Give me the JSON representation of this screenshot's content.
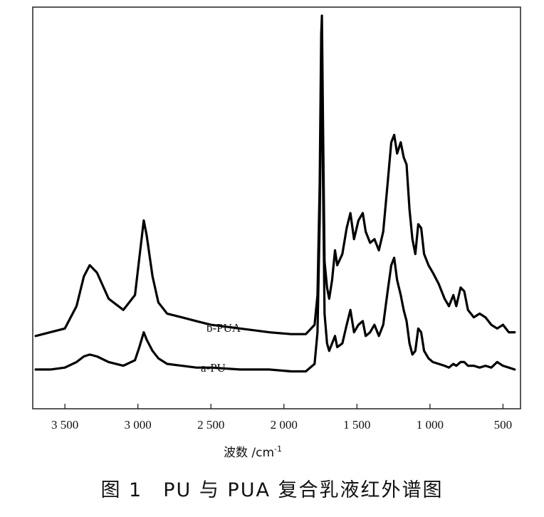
{
  "caption": "图 1　PU 与 PUA 复合乳液红外谱图",
  "chart_data": {
    "type": "line",
    "title": "",
    "xlabel": "波数 /cm",
    "xlabel_sup": "-1",
    "ylabel": "",
    "x_reversed": true,
    "xlim": [
      3720,
      380
    ],
    "x_ticks": [
      3500,
      3000,
      2500,
      2000,
      1500,
      1000,
      500
    ],
    "x_tick_labels": [
      "3 500",
      "3 000",
      "2 500",
      "2 000",
      "1 500",
      "1 000",
      "500"
    ],
    "y_ticks": false,
    "grid": false,
    "series": [
      {
        "name": "b-PUA",
        "color": "#000000",
        "points": [
          [
            3700,
            0.14
          ],
          [
            3600,
            0.15
          ],
          [
            3500,
            0.16
          ],
          [
            3420,
            0.22
          ],
          [
            3370,
            0.3
          ],
          [
            3330,
            0.33
          ],
          [
            3280,
            0.31
          ],
          [
            3200,
            0.24
          ],
          [
            3100,
            0.21
          ],
          [
            3020,
            0.25
          ],
          [
            2990,
            0.35
          ],
          [
            2960,
            0.45
          ],
          [
            2940,
            0.41
          ],
          [
            2900,
            0.3
          ],
          [
            2860,
            0.23
          ],
          [
            2800,
            0.2
          ],
          [
            2700,
            0.19
          ],
          [
            2600,
            0.18
          ],
          [
            2500,
            0.17
          ],
          [
            2300,
            0.16
          ],
          [
            2100,
            0.15
          ],
          [
            1950,
            0.145
          ],
          [
            1850,
            0.145
          ],
          [
            1790,
            0.17
          ],
          [
            1770,
            0.25
          ],
          [
            1755,
            0.55
          ],
          [
            1745,
            0.95
          ],
          [
            1740,
            1.0
          ],
          [
            1732,
            0.7
          ],
          [
            1722,
            0.34
          ],
          [
            1705,
            0.27
          ],
          [
            1690,
            0.24
          ],
          [
            1670,
            0.29
          ],
          [
            1650,
            0.37
          ],
          [
            1635,
            0.33
          ],
          [
            1600,
            0.36
          ],
          [
            1570,
            0.43
          ],
          [
            1545,
            0.47
          ],
          [
            1520,
            0.4
          ],
          [
            1490,
            0.45
          ],
          [
            1460,
            0.47
          ],
          [
            1440,
            0.42
          ],
          [
            1410,
            0.39
          ],
          [
            1380,
            0.4
          ],
          [
            1350,
            0.37
          ],
          [
            1320,
            0.42
          ],
          [
            1290,
            0.55
          ],
          [
            1265,
            0.66
          ],
          [
            1245,
            0.68
          ],
          [
            1225,
            0.63
          ],
          [
            1200,
            0.66
          ],
          [
            1180,
            0.62
          ],
          [
            1160,
            0.6
          ],
          [
            1140,
            0.48
          ],
          [
            1120,
            0.4
          ],
          [
            1100,
            0.36
          ],
          [
            1080,
            0.44
          ],
          [
            1060,
            0.43
          ],
          [
            1040,
            0.36
          ],
          [
            1010,
            0.33
          ],
          [
            980,
            0.31
          ],
          [
            940,
            0.28
          ],
          [
            900,
            0.24
          ],
          [
            870,
            0.22
          ],
          [
            840,
            0.25
          ],
          [
            820,
            0.22
          ],
          [
            790,
            0.27
          ],
          [
            765,
            0.26
          ],
          [
            740,
            0.21
          ],
          [
            700,
            0.19
          ],
          [
            660,
            0.2
          ],
          [
            620,
            0.19
          ],
          [
            580,
            0.17
          ],
          [
            540,
            0.16
          ],
          [
            500,
            0.17
          ],
          [
            460,
            0.15
          ],
          [
            420,
            0.15
          ]
        ]
      },
      {
        "name": "a-PU",
        "color": "#000000",
        "points": [
          [
            3700,
            0.05
          ],
          [
            3600,
            0.05
          ],
          [
            3500,
            0.055
          ],
          [
            3420,
            0.07
          ],
          [
            3370,
            0.085
          ],
          [
            3330,
            0.09
          ],
          [
            3280,
            0.085
          ],
          [
            3200,
            0.07
          ],
          [
            3100,
            0.06
          ],
          [
            3020,
            0.075
          ],
          [
            2990,
            0.11
          ],
          [
            2960,
            0.15
          ],
          [
            2940,
            0.13
          ],
          [
            2900,
            0.1
          ],
          [
            2860,
            0.08
          ],
          [
            2800,
            0.065
          ],
          [
            2700,
            0.06
          ],
          [
            2600,
            0.055
          ],
          [
            2500,
            0.055
          ],
          [
            2300,
            0.05
          ],
          [
            2100,
            0.05
          ],
          [
            1950,
            0.045
          ],
          [
            1850,
            0.045
          ],
          [
            1790,
            0.065
          ],
          [
            1770,
            0.15
          ],
          [
            1755,
            0.45
          ],
          [
            1745,
            0.82
          ],
          [
            1740,
            0.88
          ],
          [
            1732,
            0.55
          ],
          [
            1722,
            0.2
          ],
          [
            1705,
            0.12
          ],
          [
            1690,
            0.1
          ],
          [
            1670,
            0.12
          ],
          [
            1650,
            0.14
          ],
          [
            1635,
            0.11
          ],
          [
            1600,
            0.12
          ],
          [
            1570,
            0.17
          ],
          [
            1545,
            0.21
          ],
          [
            1520,
            0.15
          ],
          [
            1490,
            0.17
          ],
          [
            1460,
            0.18
          ],
          [
            1440,
            0.14
          ],
          [
            1410,
            0.15
          ],
          [
            1380,
            0.17
          ],
          [
            1350,
            0.14
          ],
          [
            1320,
            0.17
          ],
          [
            1290,
            0.26
          ],
          [
            1265,
            0.33
          ],
          [
            1245,
            0.35
          ],
          [
            1225,
            0.29
          ],
          [
            1200,
            0.25
          ],
          [
            1180,
            0.21
          ],
          [
            1160,
            0.18
          ],
          [
            1140,
            0.12
          ],
          [
            1120,
            0.09
          ],
          [
            1100,
            0.1
          ],
          [
            1080,
            0.16
          ],
          [
            1060,
            0.15
          ],
          [
            1040,
            0.1
          ],
          [
            1010,
            0.08
          ],
          [
            980,
            0.07
          ],
          [
            940,
            0.065
          ],
          [
            900,
            0.06
          ],
          [
            870,
            0.055
          ],
          [
            840,
            0.065
          ],
          [
            820,
            0.06
          ],
          [
            790,
            0.07
          ],
          [
            765,
            0.07
          ],
          [
            740,
            0.06
          ],
          [
            700,
            0.06
          ],
          [
            660,
            0.055
          ],
          [
            620,
            0.06
          ],
          [
            580,
            0.055
          ],
          [
            540,
            0.07
          ],
          [
            500,
            0.06
          ],
          [
            460,
            0.055
          ],
          [
            420,
            0.05
          ]
        ]
      }
    ]
  }
}
